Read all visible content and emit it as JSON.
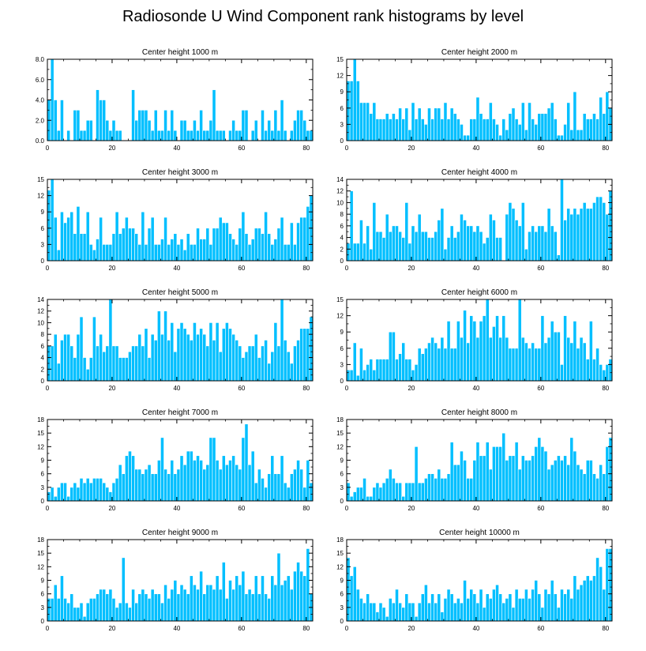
{
  "figure_title": "Radiosonde U Wind Component rank histograms by level",
  "colors": {
    "bar": "#00bfff",
    "bar_edge": "#ffffff",
    "axis": "#000000"
  },
  "chart_data": [
    {
      "type": "bar",
      "title": "Center height 1000 m",
      "xlim": [
        0,
        82
      ],
      "ylim": [
        0,
        8
      ],
      "xticks": [
        "0",
        "20",
        "40",
        "60",
        "80"
      ],
      "yticks": [
        "0.0",
        "2.0",
        "4.0",
        "6.0",
        "8.0"
      ],
      "values": [
        4,
        8,
        4,
        1,
        4,
        0,
        1,
        0,
        3,
        3,
        1,
        1,
        2,
        2,
        0,
        5,
        4,
        4,
        2,
        1,
        2,
        1,
        1,
        0,
        0,
        0,
        5,
        2,
        3,
        3,
        3,
        2,
        1,
        3,
        1,
        1,
        3,
        1,
        3,
        1,
        0,
        2,
        2,
        1,
        1,
        2,
        1,
        3,
        1,
        1,
        2,
        5,
        1,
        1,
        1,
        0,
        1,
        2,
        1,
        1,
        3,
        3,
        0,
        1,
        2,
        0,
        3,
        1,
        2,
        1,
        3,
        1,
        4,
        1,
        0,
        1,
        2,
        3,
        3,
        2,
        1,
        1
      ]
    },
    {
      "type": "bar",
      "title": "Center height 2000 m",
      "xlim": [
        0,
        82
      ],
      "ylim": [
        0,
        15
      ],
      "xticks": [
        "0",
        "20",
        "40",
        "60",
        "80"
      ],
      "yticks": [
        "0",
        "3",
        "6",
        "9",
        "12",
        "15"
      ],
      "values": [
        11,
        11,
        15,
        11,
        7,
        7,
        7,
        5,
        7,
        4,
        4,
        4,
        5,
        4,
        5,
        4,
        6,
        4,
        6,
        2,
        7,
        4,
        6,
        4,
        3,
        6,
        4,
        6,
        6,
        4,
        7,
        4,
        6,
        5,
        4,
        3,
        1,
        1,
        4,
        4,
        8,
        5,
        4,
        4,
        7,
        4,
        3,
        1,
        4,
        2,
        5,
        6,
        4,
        3,
        7,
        2,
        7,
        4,
        3,
        5,
        5,
        5,
        6,
        7,
        4,
        1,
        1,
        3,
        7,
        2,
        9,
        2,
        2,
        5,
        4,
        4,
        5,
        4,
        8,
        5,
        9,
        6
      ]
    },
    {
      "type": "bar",
      "title": "Center height 3000 m",
      "xlim": [
        0,
        82
      ],
      "ylim": [
        0,
        15
      ],
      "xticks": [
        "0",
        "20",
        "40",
        "60",
        "80"
      ],
      "yticks": [
        "0",
        "3",
        "6",
        "9",
        "12",
        "15"
      ],
      "values": [
        13,
        15,
        8,
        2,
        9,
        7,
        8,
        9,
        5,
        10,
        5,
        5,
        9,
        3,
        2,
        4,
        8,
        3,
        3,
        3,
        5,
        9,
        5,
        6,
        8,
        6,
        6,
        5,
        3,
        9,
        3,
        6,
        8,
        3,
        3,
        4,
        8,
        3,
        4,
        5,
        3,
        4,
        2,
        5,
        3,
        3,
        6,
        4,
        4,
        6,
        3,
        6,
        6,
        8,
        7,
        7,
        5,
        4,
        3,
        6,
        9,
        5,
        3,
        4,
        6,
        6,
        5,
        9,
        5,
        3,
        4,
        6,
        8,
        3,
        3,
        7,
        3,
        7,
        8,
        8,
        10,
        12
      ]
    },
    {
      "type": "bar",
      "title": "Center height 4000 m",
      "xlim": [
        0,
        82
      ],
      "ylim": [
        0,
        14
      ],
      "xticks": [
        "0",
        "20",
        "40",
        "60",
        "80"
      ],
      "yticks": [
        "0",
        "2",
        "4",
        "6",
        "8",
        "10",
        "12",
        "14"
      ],
      "values": [
        3,
        12,
        3,
        3,
        7,
        3,
        6,
        2,
        10,
        5,
        5,
        4,
        8,
        5,
        6,
        6,
        5,
        4,
        10,
        3,
        6,
        5,
        8,
        5,
        5,
        4,
        4,
        5,
        7,
        9,
        2,
        4,
        6,
        4,
        5,
        8,
        7,
        6,
        6,
        5,
        6,
        5,
        3,
        4,
        8,
        7,
        4,
        4,
        0,
        8,
        10,
        9,
        7,
        6,
        10,
        2,
        5,
        6,
        5,
        6,
        6,
        5,
        9,
        6,
        5,
        1,
        14,
        7,
        9,
        8,
        9,
        8,
        9,
        10,
        9,
        9,
        10,
        11,
        11,
        10,
        8,
        12
      ]
    },
    {
      "type": "bar",
      "title": "Center height 5000 m",
      "xlim": [
        0,
        82
      ],
      "ylim": [
        0,
        14
      ],
      "xticks": [
        "0",
        "20",
        "40",
        "60",
        "80"
      ],
      "yticks": [
        "0",
        "2",
        "4",
        "6",
        "8",
        "10",
        "12",
        "14"
      ],
      "values": [
        6,
        6,
        8,
        3,
        7,
        8,
        8,
        6,
        4,
        8,
        11,
        4,
        2,
        4,
        11,
        6,
        8,
        5,
        6,
        14,
        6,
        6,
        4,
        4,
        4,
        5,
        6,
        6,
        8,
        6,
        9,
        4,
        8,
        7,
        12,
        8,
        12,
        7,
        10,
        5,
        9,
        10,
        9,
        8,
        7,
        10,
        8,
        9,
        8,
        6,
        10,
        7,
        10,
        5,
        9,
        10,
        9,
        8,
        7,
        6,
        4,
        5,
        6,
        6,
        8,
        4,
        6,
        7,
        3,
        5,
        10,
        6,
        14,
        7,
        5,
        3,
        6,
        7,
        9,
        9,
        9,
        11
      ]
    },
    {
      "type": "bar",
      "title": "Center height 6000 m",
      "xlim": [
        0,
        82
      ],
      "ylim": [
        0,
        15
      ],
      "xticks": [
        "0",
        "20",
        "40",
        "60",
        "80"
      ],
      "yticks": [
        "0",
        "3",
        "6",
        "9",
        "12",
        "15"
      ],
      "values": [
        2,
        2,
        7,
        1,
        6,
        2,
        3,
        4,
        2,
        4,
        4,
        4,
        4,
        9,
        9,
        4,
        5,
        7,
        4,
        4,
        2,
        3,
        6,
        5,
        6,
        7,
        8,
        7,
        6,
        8,
        6,
        11,
        6,
        6,
        11,
        8,
        13,
        7,
        12,
        11,
        8,
        11,
        12,
        15,
        8,
        10,
        12,
        8,
        12,
        8,
        6,
        6,
        6,
        15,
        8,
        7,
        6,
        7,
        6,
        6,
        12,
        7,
        8,
        11,
        9,
        9,
        3,
        12,
        8,
        7,
        11,
        6,
        8,
        7,
        4,
        11,
        4,
        6,
        3,
        2,
        3,
        4
      ]
    },
    {
      "type": "bar",
      "title": "Center height 7000 m",
      "xlim": [
        0,
        82
      ],
      "ylim": [
        0,
        18
      ],
      "xticks": [
        "0",
        "20",
        "40",
        "60",
        "80"
      ],
      "yticks": [
        "0",
        "3",
        "6",
        "9",
        "12",
        "15",
        "18"
      ],
      "values": [
        2,
        3,
        1,
        3,
        4,
        4,
        1,
        3,
        4,
        3,
        5,
        4,
        5,
        4,
        5,
        5,
        5,
        4,
        3,
        2,
        4,
        5,
        8,
        6,
        10,
        11,
        10,
        7,
        7,
        6,
        7,
        8,
        6,
        6,
        9,
        14,
        7,
        6,
        9,
        6,
        7,
        10,
        8,
        11,
        11,
        9,
        10,
        9,
        7,
        8,
        14,
        14,
        9,
        7,
        10,
        8,
        9,
        10,
        8,
        7,
        14,
        17,
        8,
        11,
        4,
        7,
        5,
        3,
        6,
        10,
        6,
        6,
        10,
        4,
        3,
        6,
        7,
        9,
        7,
        3,
        9,
        4
      ]
    },
    {
      "type": "bar",
      "title": "Center height 8000 m",
      "xlim": [
        0,
        82
      ],
      "ylim": [
        0,
        18
      ],
      "xticks": [
        "0",
        "20",
        "40",
        "60",
        "80"
      ],
      "yticks": [
        "0",
        "3",
        "6",
        "9",
        "12",
        "15",
        "18"
      ],
      "values": [
        4,
        1,
        2,
        3,
        3,
        5,
        1,
        1,
        3,
        4,
        3,
        4,
        5,
        7,
        5,
        4,
        4,
        1,
        4,
        4,
        4,
        12,
        4,
        4,
        5,
        6,
        6,
        5,
        7,
        5,
        5,
        6,
        13,
        8,
        8,
        11,
        9,
        5,
        5,
        9,
        13,
        10,
        10,
        13,
        7,
        12,
        12,
        12,
        15,
        9,
        10,
        10,
        13,
        7,
        10,
        9,
        9,
        10,
        12,
        14,
        12,
        11,
        7,
        8,
        9,
        10,
        9,
        10,
        8,
        14,
        11,
        8,
        7,
        6,
        9,
        9,
        6,
        5,
        8,
        6,
        12,
        14
      ]
    },
    {
      "type": "bar",
      "title": "Center height 9000 m",
      "xlim": [
        0,
        82
      ],
      "ylim": [
        0,
        18
      ],
      "xticks": [
        "0",
        "20",
        "40",
        "60",
        "80"
      ],
      "yticks": [
        "0",
        "3",
        "6",
        "9",
        "12",
        "15",
        "18"
      ],
      "values": [
        5,
        5,
        8,
        5,
        10,
        5,
        4,
        6,
        3,
        3,
        4,
        1,
        4,
        5,
        5,
        6,
        7,
        7,
        6,
        7,
        5,
        3,
        4,
        14,
        4,
        3,
        7,
        4,
        6,
        7,
        6,
        5,
        7,
        6,
        6,
        4,
        8,
        5,
        7,
        9,
        6,
        8,
        7,
        6,
        10,
        8,
        7,
        11,
        6,
        8,
        8,
        7,
        10,
        7,
        13,
        5,
        9,
        7,
        10,
        8,
        11,
        6,
        7,
        6,
        10,
        6,
        10,
        6,
        5,
        10,
        8,
        15,
        8,
        9,
        10,
        7,
        11,
        13,
        11,
        10,
        16,
        6
      ]
    },
    {
      "type": "bar",
      "title": "Center height 10000 m",
      "xlim": [
        0,
        82
      ],
      "ylim": [
        0,
        18
      ],
      "xticks": [
        "0",
        "20",
        "40",
        "60",
        "80"
      ],
      "yticks": [
        "0",
        "3",
        "6",
        "9",
        "12",
        "15",
        "18"
      ],
      "values": [
        14,
        10,
        12,
        7,
        5,
        4,
        6,
        4,
        4,
        2,
        4,
        3,
        1,
        5,
        4,
        7,
        4,
        3,
        6,
        4,
        4,
        1,
        4,
        6,
        8,
        4,
        6,
        4,
        6,
        2,
        5,
        7,
        6,
        4,
        5,
        4,
        9,
        5,
        7,
        6,
        4,
        7,
        3,
        6,
        5,
        7,
        8,
        6,
        4,
        5,
        6,
        3,
        7,
        5,
        5,
        7,
        5,
        7,
        9,
        6,
        3,
        7,
        6,
        9,
        6,
        3,
        7,
        6,
        7,
        5,
        10,
        7,
        8,
        9,
        10,
        9,
        10,
        14,
        12,
        7,
        16,
        16
      ]
    }
  ]
}
